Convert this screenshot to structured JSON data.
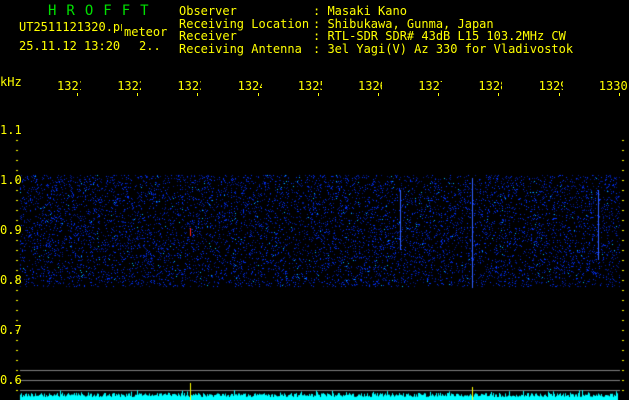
{
  "header": {
    "app_title": "HROFFT",
    "filename": "UT2511121320.png",
    "mode": "meteor",
    "datetime": "25.11.12 13:20",
    "extra": "2..",
    "info": [
      {
        "label": "Observer",
        "value": ": Masaki Kano"
      },
      {
        "label": "Receiving Location",
        "value": ": Shibukawa, Gunma, Japan"
      },
      {
        "label": "Receiver",
        "value": ": RTL-SDR SDR# 43dB L15 103.2MHz CW"
      },
      {
        "label": "Receiving Antenna",
        "value": ": 3el Yagi(V) Az 330 for Vladivostok"
      }
    ]
  },
  "x_axis": {
    "unit": "kHz",
    "ticks": [
      "1321",
      "1322",
      "1323",
      "1324",
      "1325",
      "1326",
      "1327",
      "1328",
      "1329",
      "1330"
    ]
  },
  "y_axis": {
    "ticks": [
      "1.1",
      "1.0",
      "0.9",
      "0.8",
      "0.7",
      "0.6"
    ]
  },
  "colors": {
    "text": "#ffff00",
    "title": "#00e000",
    "signal": "#0030ff",
    "spectrum": "#00ffff",
    "grid": "#808080"
  }
}
